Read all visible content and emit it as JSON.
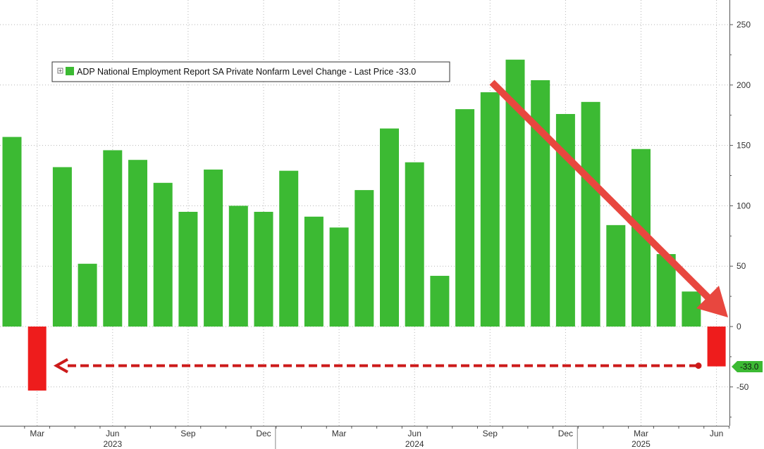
{
  "chart_data": {
    "type": "bar",
    "legend": "ADP National Employment Report SA Private Nonfarm Level Change - Last Price -33.0",
    "last_value_label": "-33.0",
    "categories": [
      "2023-02",
      "2023-03",
      "2023-04",
      "2023-05",
      "2023-06",
      "2023-07",
      "2023-08",
      "2023-09",
      "2023-10",
      "2023-11",
      "2023-12",
      "2024-01",
      "2024-02",
      "2024-03",
      "2024-04",
      "2024-05",
      "2024-06",
      "2024-07",
      "2024-08",
      "2024-09",
      "2024-10",
      "2024-11",
      "2024-12",
      "2025-01",
      "2025-02",
      "2025-03",
      "2025-04",
      "2025-05",
      "2025-06"
    ],
    "values": [
      157,
      -53,
      132,
      52,
      146,
      138,
      119,
      95,
      130,
      100,
      95,
      129,
      91,
      82,
      113,
      164,
      136,
      42,
      180,
      194,
      221,
      204,
      176,
      186,
      84,
      147,
      60,
      29,
      -33
    ],
    "ylim": [
      -82,
      270
    ],
    "y_ticks": [
      "250",
      "200",
      "150",
      "100",
      "50",
      "0",
      "-50"
    ],
    "y_tick_values": [
      250,
      200,
      150,
      100,
      50,
      0,
      -50
    ],
    "x_month_labels": [
      "Mar",
      "Jun",
      "Sep",
      "Dec",
      "Mar",
      "Jun",
      "Sep",
      "Dec",
      "Mar",
      "Jun"
    ],
    "x_year_labels": [
      "2023",
      "2024",
      "2025"
    ],
    "grid": true,
    "legend_position": "top-left",
    "colors": {
      "positive": "#3cba33",
      "negative": "#ee1c1c",
      "arrow": "#e8473f",
      "dashed": "#cc1a1a",
      "last_label_bg": "#3cba33"
    }
  }
}
